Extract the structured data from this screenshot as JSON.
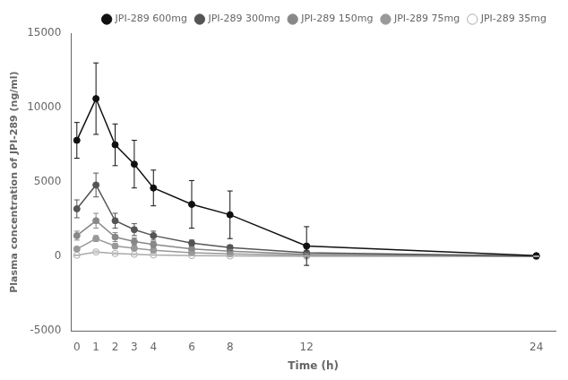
{
  "chart_data": {
    "type": "line",
    "xlabel": "Time (h)",
    "ylabel": "Plasma concentration of JPI-289 (ng/ml)",
    "x": [
      0,
      1,
      2,
      3,
      4,
      6,
      8,
      12,
      24
    ],
    "xlim": [
      -0.3,
      25
    ],
    "xticks": [
      0,
      1,
      2,
      3,
      4,
      6,
      8,
      12,
      24
    ],
    "ylim": [
      -5000,
      15000
    ],
    "yticks": [
      -5000,
      0,
      5000,
      10000,
      15000
    ],
    "grid": false,
    "legend": "upper right",
    "series": [
      {
        "name": "JPI-289 600mg",
        "color": "#111111",
        "marker": "circle",
        "values": [
          7800,
          10600,
          7500,
          6200,
          4600,
          3500,
          2800,
          700,
          50
        ],
        "errors": [
          1200,
          2400,
          1400,
          1600,
          1200,
          1600,
          1600,
          1300,
          30
        ]
      },
      {
        "name": "JPI-289 300mg",
        "color": "#555555",
        "marker": "circle",
        "values": [
          3200,
          4800,
          2400,
          1800,
          1400,
          900,
          600,
          250,
          30
        ],
        "errors": [
          600,
          800,
          500,
          400,
          300,
          200,
          150,
          100,
          15
        ]
      },
      {
        "name": "JPI-289 150mg",
        "color": "#888888",
        "marker": "circle",
        "values": [
          1400,
          2400,
          1300,
          1000,
          800,
          500,
          350,
          150,
          20
        ],
        "errors": [
          300,
          500,
          300,
          250,
          200,
          150,
          120,
          80,
          10
        ]
      },
      {
        "name": "JPI-289 75mg",
        "color": "#999999",
        "marker": "circle",
        "values": [
          500,
          1200,
          700,
          550,
          420,
          250,
          180,
          80,
          15
        ],
        "errors": [
          100,
          200,
          150,
          120,
          100,
          80,
          60,
          35,
          8
        ]
      },
      {
        "name": "JPI-289 35mg",
        "color": "#aaaaaa",
        "marker": "circle_open",
        "values": [
          80,
          300,
          200,
          150,
          100,
          60,
          35,
          15,
          5
        ],
        "errors": [
          20,
          60,
          45,
          35,
          25,
          18,
          12,
          7,
          3
        ]
      }
    ]
  }
}
